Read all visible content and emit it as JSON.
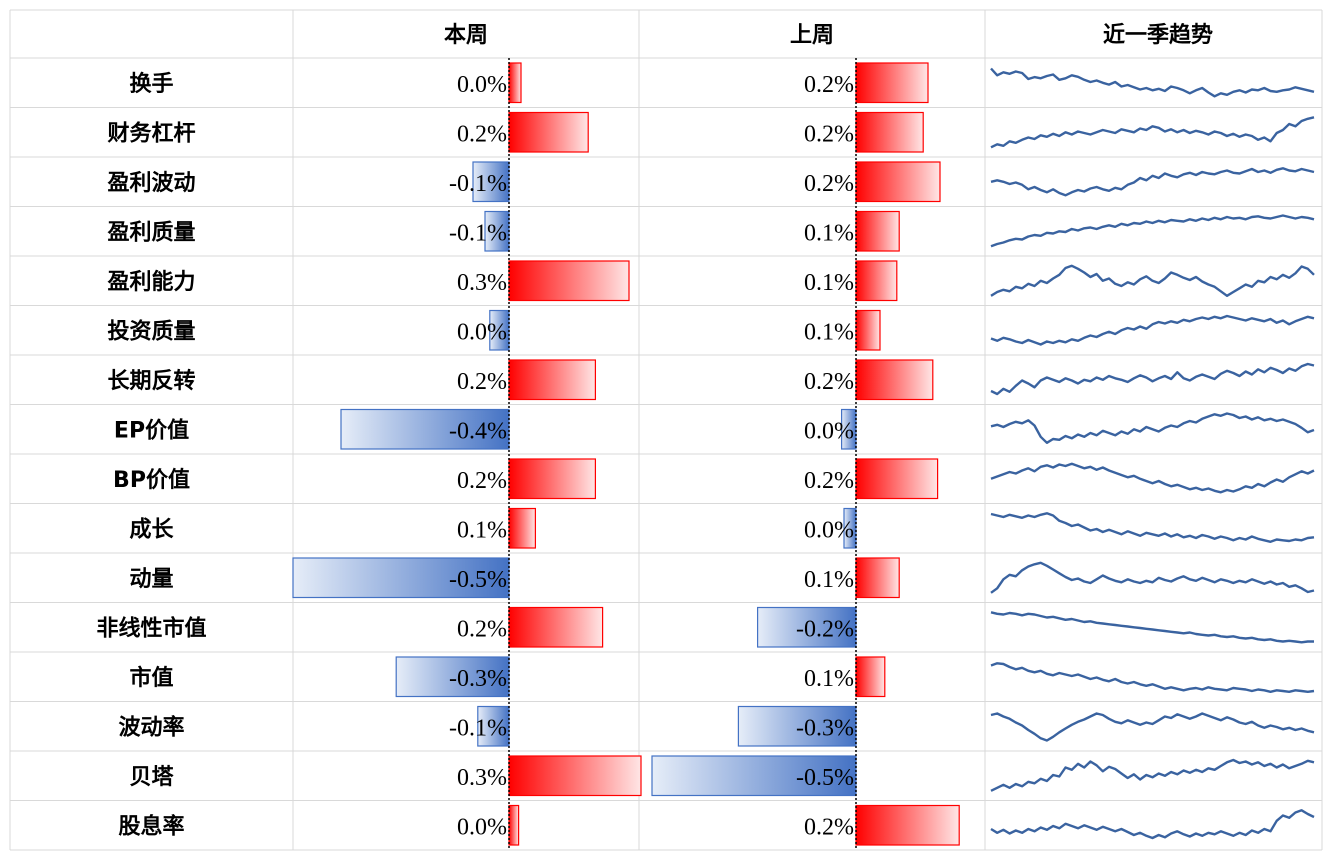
{
  "chart_data": {
    "type": "table",
    "columns": [
      "",
      "本周",
      "上周",
      "近一季趋势"
    ],
    "colors": {
      "positive": "#ff0000",
      "negative": "#4472c4",
      "positive_border": "#ff0000",
      "negative_border": "#4472c4",
      "sparkline": "#3a63a0",
      "grid": "#d9d9d9"
    },
    "value_range": [
      -0.5,
      0.5
    ],
    "rows": [
      {
        "label": "换手",
        "this_week": 0.0,
        "this_week_label": "0.0%",
        "last_week": 0.2,
        "last_week_label": "0.2%",
        "this_bar": 0.05,
        "last_bar": 0.3,
        "trend": [
          0.88,
          0.7,
          0.78,
          0.74,
          0.8,
          0.76,
          0.6,
          0.65,
          0.62,
          0.68,
          0.72,
          0.58,
          0.62,
          0.7,
          0.66,
          0.58,
          0.52,
          0.56,
          0.5,
          0.45,
          0.52,
          0.4,
          0.44,
          0.38,
          0.32,
          0.36,
          0.3,
          0.34,
          0.28,
          0.4,
          0.36,
          0.3,
          0.22,
          0.3,
          0.36,
          0.24,
          0.14,
          0.22,
          0.18,
          0.26,
          0.3,
          0.24,
          0.32,
          0.3,
          0.36,
          0.28,
          0.26,
          0.3,
          0.32,
          0.38,
          0.34,
          0.3,
          0.26
        ]
      },
      {
        "label": "财务杠杆",
        "this_week": 0.2,
        "this_week_label": "0.2%",
        "last_week": 0.2,
        "last_week_label": "0.2%",
        "this_bar": 0.33,
        "last_bar": 0.28,
        "trend": [
          0.1,
          0.18,
          0.14,
          0.26,
          0.22,
          0.3,
          0.36,
          0.32,
          0.42,
          0.38,
          0.46,
          0.4,
          0.5,
          0.44,
          0.52,
          0.48,
          0.44,
          0.5,
          0.56,
          0.52,
          0.48,
          0.58,
          0.54,
          0.5,
          0.6,
          0.56,
          0.66,
          0.62,
          0.52,
          0.58,
          0.5,
          0.56,
          0.48,
          0.54,
          0.5,
          0.44,
          0.52,
          0.48,
          0.4,
          0.46,
          0.38,
          0.44,
          0.4,
          0.3,
          0.36,
          0.26,
          0.48,
          0.56,
          0.72,
          0.66,
          0.8,
          0.86,
          0.9
        ]
      },
      {
        "label": "盈利波动",
        "this_week": -0.1,
        "this_week_label": "-0.1%",
        "last_week": 0.2,
        "last_week_label": "0.2%",
        "this_bar": -0.15,
        "last_bar": 0.35,
        "trend": [
          0.5,
          0.54,
          0.5,
          0.44,
          0.48,
          0.42,
          0.3,
          0.36,
          0.28,
          0.22,
          0.3,
          0.2,
          0.14,
          0.22,
          0.28,
          0.24,
          0.32,
          0.36,
          0.3,
          0.26,
          0.34,
          0.3,
          0.42,
          0.48,
          0.6,
          0.54,
          0.66,
          0.6,
          0.72,
          0.66,
          0.62,
          0.7,
          0.74,
          0.68,
          0.76,
          0.72,
          0.7,
          0.76,
          0.8,
          0.74,
          0.72,
          0.78,
          0.84,
          0.76,
          0.8,
          0.74,
          0.82,
          0.86,
          0.8,
          0.78,
          0.84,
          0.8,
          0.76
        ]
      },
      {
        "label": "盈利质量",
        "this_week": -0.1,
        "this_week_label": "-0.1%",
        "last_week": 0.1,
        "last_week_label": "0.1%",
        "this_bar": -0.1,
        "last_bar": 0.18,
        "trend": [
          0.1,
          0.16,
          0.2,
          0.26,
          0.3,
          0.28,
          0.36,
          0.4,
          0.38,
          0.46,
          0.44,
          0.5,
          0.48,
          0.56,
          0.52,
          0.58,
          0.6,
          0.56,
          0.62,
          0.66,
          0.62,
          0.7,
          0.66,
          0.72,
          0.7,
          0.76,
          0.72,
          0.78,
          0.74,
          0.8,
          0.78,
          0.76,
          0.82,
          0.78,
          0.84,
          0.8,
          0.86,
          0.82,
          0.88,
          0.84,
          0.86,
          0.82,
          0.88,
          0.9,
          0.86,
          0.84,
          0.88,
          0.92,
          0.88,
          0.84,
          0.88,
          0.86,
          0.82
        ]
      },
      {
        "label": "盈利能力",
        "this_week": 0.3,
        "this_week_label": "0.3%",
        "last_week": 0.1,
        "last_week_label": "0.1%",
        "this_bar": 0.5,
        "last_bar": 0.17,
        "trend": [
          0.1,
          0.2,
          0.26,
          0.22,
          0.34,
          0.3,
          0.42,
          0.36,
          0.5,
          0.44,
          0.56,
          0.66,
          0.84,
          0.9,
          0.82,
          0.72,
          0.6,
          0.68,
          0.5,
          0.56,
          0.42,
          0.36,
          0.46,
          0.4,
          0.54,
          0.62,
          0.5,
          0.44,
          0.56,
          0.72,
          0.66,
          0.58,
          0.52,
          0.6,
          0.48,
          0.4,
          0.34,
          0.22,
          0.1,
          0.2,
          0.3,
          0.4,
          0.34,
          0.5,
          0.46,
          0.6,
          0.54,
          0.66,
          0.58,
          0.7,
          0.88,
          0.82,
          0.66
        ]
      },
      {
        "label": "投资质量",
        "this_week": 0.0,
        "this_week_label": "0.0%",
        "last_week": 0.1,
        "last_week_label": "0.1%",
        "this_bar": -0.08,
        "last_bar": 0.1,
        "trend": [
          0.28,
          0.22,
          0.3,
          0.26,
          0.2,
          0.16,
          0.24,
          0.18,
          0.12,
          0.2,
          0.16,
          0.22,
          0.18,
          0.26,
          0.22,
          0.3,
          0.36,
          0.32,
          0.4,
          0.46,
          0.4,
          0.5,
          0.56,
          0.52,
          0.6,
          0.54,
          0.66,
          0.72,
          0.68,
          0.74,
          0.7,
          0.78,
          0.74,
          0.8,
          0.84,
          0.8,
          0.86,
          0.82,
          0.88,
          0.84,
          0.8,
          0.76,
          0.82,
          0.78,
          0.74,
          0.8,
          0.7,
          0.76,
          0.66,
          0.74,
          0.8,
          0.86,
          0.82
        ]
      },
      {
        "label": "长期反转",
        "this_week": 0.2,
        "this_week_label": "0.2%",
        "last_week": 0.2,
        "last_week_label": "0.2%",
        "this_bar": 0.36,
        "last_bar": 0.32,
        "trend": [
          0.2,
          0.12,
          0.26,
          0.18,
          0.34,
          0.48,
          0.4,
          0.3,
          0.48,
          0.56,
          0.5,
          0.44,
          0.54,
          0.48,
          0.4,
          0.5,
          0.46,
          0.56,
          0.5,
          0.6,
          0.54,
          0.5,
          0.44,
          0.54,
          0.62,
          0.56,
          0.46,
          0.54,
          0.6,
          0.52,
          0.7,
          0.54,
          0.48,
          0.58,
          0.64,
          0.58,
          0.52,
          0.66,
          0.74,
          0.68,
          0.6,
          0.72,
          0.64,
          0.78,
          0.7,
          0.82,
          0.76,
          0.68,
          0.8,
          0.74,
          0.86,
          0.92,
          0.88
        ]
      },
      {
        "label": "EP价值",
        "this_week": -0.4,
        "this_week_label": "-0.4%",
        "last_week": 0.0,
        "last_week_label": "0.0%",
        "this_bar": -0.7,
        "last_bar": -0.06,
        "trend": [
          0.58,
          0.62,
          0.56,
          0.64,
          0.7,
          0.66,
          0.74,
          0.6,
          0.3,
          0.14,
          0.24,
          0.22,
          0.32,
          0.26,
          0.36,
          0.3,
          0.4,
          0.34,
          0.46,
          0.4,
          0.34,
          0.44,
          0.38,
          0.5,
          0.44,
          0.56,
          0.5,
          0.44,
          0.54,
          0.6,
          0.56,
          0.66,
          0.72,
          0.68,
          0.78,
          0.84,
          0.9,
          0.86,
          0.92,
          0.88,
          0.8,
          0.84,
          0.76,
          0.82,
          0.74,
          0.78,
          0.72,
          0.76,
          0.7,
          0.64,
          0.54,
          0.42,
          0.48
        ]
      },
      {
        "label": "BP价值",
        "this_week": 0.2,
        "this_week_label": "0.2%",
        "last_week": 0.2,
        "last_week_label": "0.2%",
        "this_bar": 0.36,
        "last_bar": 0.34,
        "trend": [
          0.5,
          0.56,
          0.62,
          0.68,
          0.64,
          0.72,
          0.78,
          0.7,
          0.82,
          0.86,
          0.8,
          0.88,
          0.84,
          0.9,
          0.84,
          0.78,
          0.82,
          0.74,
          0.8,
          0.72,
          0.66,
          0.6,
          0.54,
          0.58,
          0.5,
          0.44,
          0.38,
          0.44,
          0.36,
          0.3,
          0.34,
          0.28,
          0.22,
          0.26,
          0.2,
          0.24,
          0.18,
          0.14,
          0.2,
          0.16,
          0.22,
          0.3,
          0.26,
          0.36,
          0.3,
          0.4,
          0.48,
          0.42,
          0.54,
          0.62,
          0.7,
          0.64,
          0.72
        ]
      },
      {
        "label": "成长",
        "this_week": 0.1,
        "this_week_label": "0.1%",
        "last_week": 0.0,
        "last_week_label": "0.0%",
        "this_bar": 0.11,
        "last_bar": -0.05,
        "trend": [
          0.88,
          0.84,
          0.8,
          0.86,
          0.82,
          0.78,
          0.84,
          0.8,
          0.86,
          0.9,
          0.84,
          0.7,
          0.64,
          0.56,
          0.6,
          0.52,
          0.44,
          0.48,
          0.4,
          0.46,
          0.4,
          0.34,
          0.42,
          0.36,
          0.3,
          0.38,
          0.34,
          0.3,
          0.36,
          0.28,
          0.34,
          0.26,
          0.3,
          0.24,
          0.32,
          0.28,
          0.22,
          0.28,
          0.24,
          0.18,
          0.24,
          0.2,
          0.28,
          0.22,
          0.18,
          0.14,
          0.2,
          0.18,
          0.16,
          0.2,
          0.18,
          0.24,
          0.26
        ]
      },
      {
        "label": "动量",
        "this_week": -0.5,
        "this_week_label": "-0.5%",
        "last_week": 0.1,
        "last_week_label": "0.1%",
        "this_bar": -0.9,
        "last_bar": 0.18,
        "trend": [
          0.1,
          0.22,
          0.46,
          0.58,
          0.54,
          0.7,
          0.8,
          0.86,
          0.9,
          0.82,
          0.72,
          0.62,
          0.52,
          0.44,
          0.48,
          0.4,
          0.36,
          0.46,
          0.56,
          0.48,
          0.42,
          0.38,
          0.46,
          0.4,
          0.36,
          0.42,
          0.38,
          0.5,
          0.44,
          0.4,
          0.48,
          0.54,
          0.46,
          0.42,
          0.5,
          0.44,
          0.38,
          0.46,
          0.42,
          0.36,
          0.42,
          0.38,
          0.46,
          0.4,
          0.34,
          0.4,
          0.32,
          0.36,
          0.26,
          0.3,
          0.22,
          0.12,
          0.16
        ]
      },
      {
        "label": "非线性市值",
        "this_week": 0.2,
        "this_week_label": "0.2%",
        "last_week": -0.2,
        "last_week_label": "-0.2%",
        "this_bar": 0.39,
        "last_bar": -0.41,
        "trend": [
          0.9,
          0.86,
          0.84,
          0.88,
          0.86,
          0.82,
          0.86,
          0.84,
          0.8,
          0.76,
          0.78,
          0.74,
          0.7,
          0.72,
          0.68,
          0.64,
          0.66,
          0.62,
          0.6,
          0.58,
          0.56,
          0.54,
          0.52,
          0.5,
          0.48,
          0.46,
          0.44,
          0.42,
          0.4,
          0.38,
          0.36,
          0.34,
          0.36,
          0.32,
          0.3,
          0.28,
          0.3,
          0.26,
          0.24,
          0.26,
          0.22,
          0.2,
          0.22,
          0.18,
          0.16,
          0.18,
          0.14,
          0.12,
          0.14,
          0.12,
          0.1,
          0.12,
          0.12
        ]
      },
      {
        "label": "市值",
        "this_week": -0.3,
        "this_week_label": "-0.3%",
        "last_week": 0.1,
        "last_week_label": "0.1%",
        "this_bar": -0.47,
        "last_bar": 0.12,
        "trend": [
          0.8,
          0.86,
          0.84,
          0.76,
          0.7,
          0.74,
          0.66,
          0.62,
          0.66,
          0.58,
          0.54,
          0.6,
          0.56,
          0.52,
          0.56,
          0.5,
          0.44,
          0.48,
          0.42,
          0.38,
          0.44,
          0.36,
          0.32,
          0.36,
          0.3,
          0.26,
          0.3,
          0.24,
          0.18,
          0.22,
          0.18,
          0.14,
          0.18,
          0.2,
          0.16,
          0.22,
          0.18,
          0.16,
          0.14,
          0.2,
          0.18,
          0.16,
          0.12,
          0.16,
          0.14,
          0.1,
          0.14,
          0.12,
          0.1,
          0.14,
          0.12,
          0.1,
          0.12
        ]
      },
      {
        "label": "波动率",
        "this_week": -0.1,
        "this_week_label": "-0.1%",
        "last_week": -0.3,
        "last_week_label": "-0.3%",
        "this_bar": -0.13,
        "last_bar": -0.49,
        "trend": [
          0.8,
          0.84,
          0.76,
          0.7,
          0.6,
          0.52,
          0.4,
          0.3,
          0.18,
          0.12,
          0.22,
          0.34,
          0.44,
          0.54,
          0.62,
          0.68,
          0.76,
          0.84,
          0.8,
          0.7,
          0.62,
          0.58,
          0.66,
          0.6,
          0.54,
          0.6,
          0.56,
          0.66,
          0.76,
          0.72,
          0.82,
          0.76,
          0.7,
          0.76,
          0.84,
          0.78,
          0.72,
          0.66,
          0.74,
          0.68,
          0.6,
          0.56,
          0.62,
          0.52,
          0.46,
          0.52,
          0.48,
          0.42,
          0.46,
          0.4,
          0.44,
          0.38,
          0.34
        ]
      },
      {
        "label": "贝塔",
        "this_week": 0.3,
        "this_week_label": "0.3%",
        "last_week": -0.5,
        "last_week_label": "-0.5%",
        "this_bar": 0.55,
        "last_bar": -0.85,
        "trend": [
          0.1,
          0.18,
          0.26,
          0.18,
          0.28,
          0.22,
          0.34,
          0.3,
          0.42,
          0.36,
          0.52,
          0.48,
          0.72,
          0.66,
          0.82,
          0.72,
          0.88,
          0.78,
          0.62,
          0.74,
          0.68,
          0.56,
          0.44,
          0.54,
          0.4,
          0.52,
          0.46,
          0.56,
          0.5,
          0.6,
          0.54,
          0.64,
          0.58,
          0.66,
          0.6,
          0.7,
          0.66,
          0.76,
          0.86,
          0.92,
          0.84,
          0.88,
          0.8,
          0.86,
          0.76,
          0.82,
          0.72,
          0.8,
          0.7,
          0.76,
          0.82,
          0.9,
          0.86
        ]
      },
      {
        "label": "股息率",
        "this_week": 0.0,
        "this_week_label": "0.0%",
        "last_week": 0.2,
        "last_week_label": "0.2%",
        "this_bar": 0.04,
        "last_bar": 0.43,
        "trend": [
          0.4,
          0.3,
          0.38,
          0.28,
          0.36,
          0.3,
          0.4,
          0.34,
          0.44,
          0.38,
          0.48,
          0.42,
          0.54,
          0.48,
          0.42,
          0.5,
          0.44,
          0.38,
          0.46,
          0.4,
          0.34,
          0.4,
          0.32,
          0.24,
          0.3,
          0.22,
          0.16,
          0.24,
          0.18,
          0.28,
          0.34,
          0.26,
          0.2,
          0.28,
          0.22,
          0.3,
          0.26,
          0.34,
          0.28,
          0.22,
          0.3,
          0.24,
          0.36,
          0.3,
          0.4,
          0.34,
          0.62,
          0.76,
          0.7,
          0.84,
          0.9,
          0.8,
          0.72
        ]
      }
    ]
  }
}
